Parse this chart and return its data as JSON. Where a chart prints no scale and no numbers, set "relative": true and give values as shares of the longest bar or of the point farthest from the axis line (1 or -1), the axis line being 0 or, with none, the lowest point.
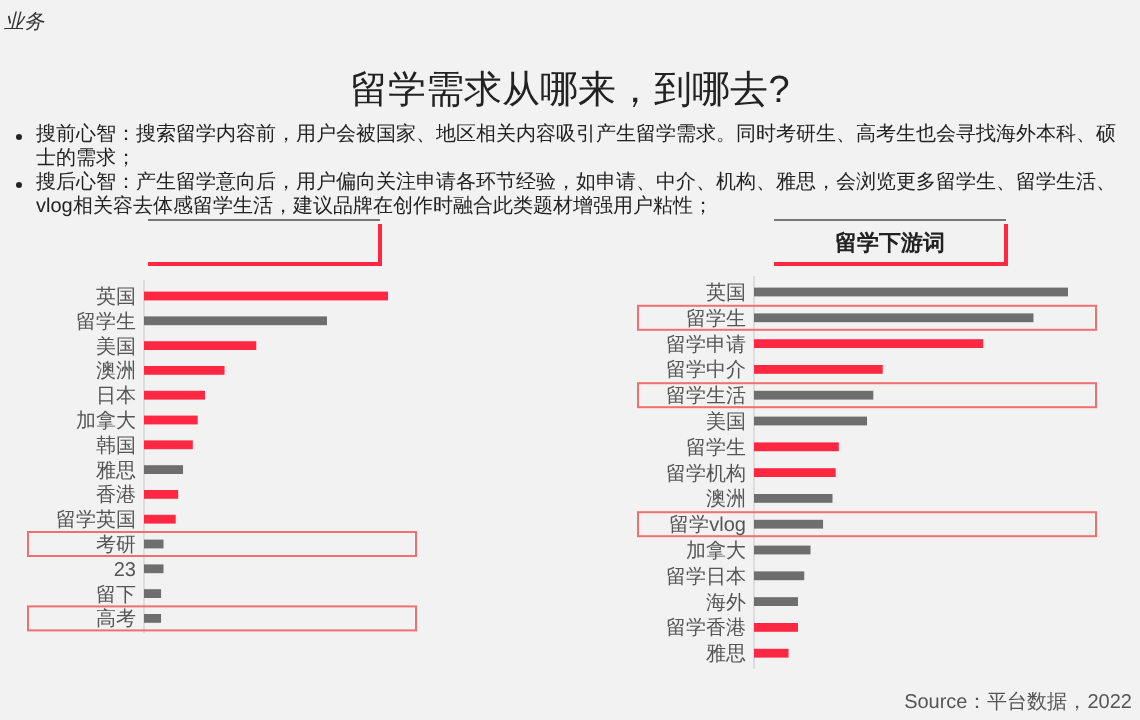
{
  "chart_data": [
    {
      "type": "other",
      "title": "留学需求从哪来，到哪去?",
      "annotations": [
        "业务",
        "搜前心智：搜索留学内容前，用户会被国家、地区相关内容吸引产生留学需求。同时考研生、高考生也会寻找海外本科、硕士的需求；",
        "搜后心智：产生留学意向后，用户偏向关注申请各环节经验，如申请、中介、机构、雅思，会浏览更多留学生、留学生活、vlog相关容去体感留学生活，建议品牌在创作时融合此类题材增强用户粘性；"
      ]
    },
    {
      "type": "bar",
      "orientation": "horizontal",
      "relative": true,
      "categories": [
        "英国",
        "留学生",
        "美国",
        "澳洲",
        "日本",
        "加拿大",
        "韩国",
        "雅思",
        "香港",
        "留学英国",
        "考研",
        "23",
        "留下",
        "高考"
      ],
      "values": [
        1,
        0.75,
        0.46,
        0.33,
        0.25,
        0.22,
        0.2,
        0.16,
        0.14,
        0.13,
        0.08,
        0.08,
        0.07,
        0.07
      ],
      "colors": [
        "#ff2741",
        "#6e6e6e",
        "#ff2741",
        "#ff2741",
        "#ff2741",
        "#ff2741",
        "#ff2741",
        "#6e6e6e",
        "#ff2741",
        "#ff2741",
        "#6e6e6e",
        "#6e6e6e",
        "#6e6e6e",
        "#6e6e6e"
      ]
    },
    {
      "type": "bar",
      "orientation": "horizontal",
      "relative": true,
      "title": "留学下游词",
      "annotations": [
        "Source：平台数据，2022"
      ],
      "categories": [
        "英国",
        "留学生",
        "留学申请",
        "留学中介",
        "留学生活",
        "美国",
        "留学生",
        "留学机构",
        "澳洲",
        "留学vlog",
        "加拿大",
        "留学日本",
        "海外",
        "留学香港",
        "雅思"
      ],
      "values": [
        1,
        0.89,
        0.73,
        0.41,
        0.38,
        0.36,
        0.27,
        0.26,
        0.25,
        0.22,
        0.18,
        0.16,
        0.14,
        0.14,
        0.11
      ],
      "colors": [
        "#6e6e6e",
        "#6e6e6e",
        "#ff2741",
        "#ff2741",
        "#6e6e6e",
        "#6e6e6e",
        "#ff2741",
        "#ff2741",
        "#6e6e6e",
        "#6e6e6e",
        "#6e6e6e",
        "#6e6e6e",
        "#6e6e6e",
        "#ff2741",
        "#ff2741"
      ]
    }
  ]
}
